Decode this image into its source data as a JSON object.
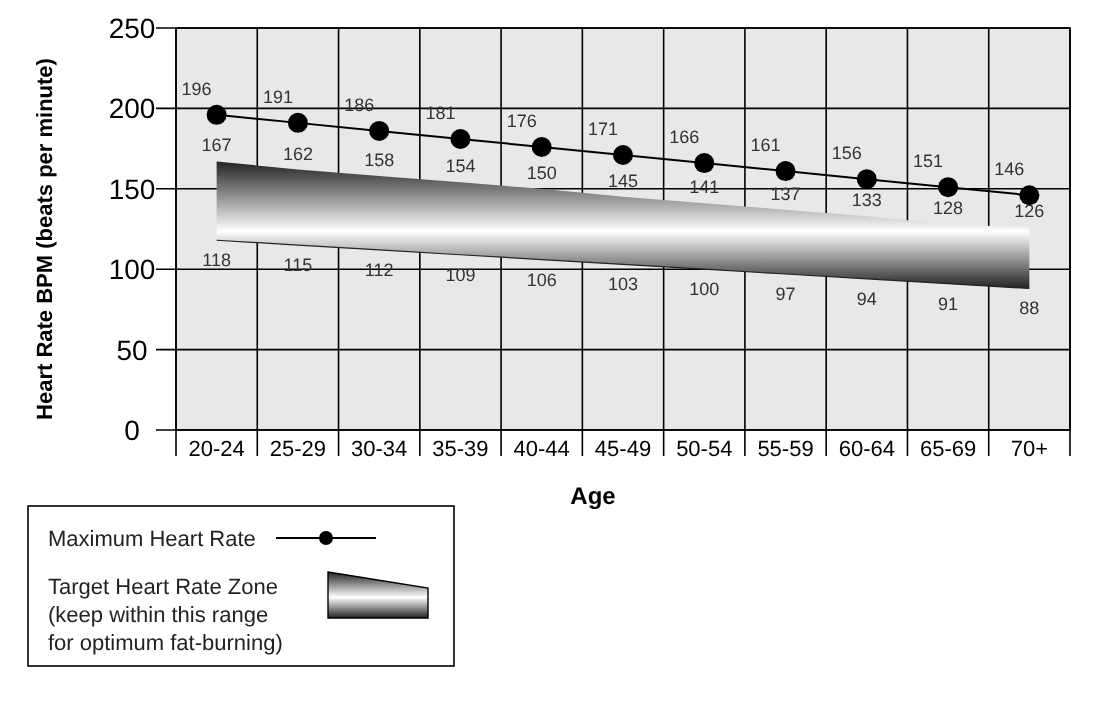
{
  "chart_data": {
    "type": "line",
    "xlabel": "Age",
    "ylabel": "Heart Rate BPM (beats per minute)",
    "categories": [
      "20-24",
      "25-29",
      "30-34",
      "35-39",
      "40-44",
      "45-49",
      "50-54",
      "55-59",
      "60-64",
      "65-69",
      "70+"
    ],
    "ylim": [
      0,
      250
    ],
    "yticks": [
      0,
      50,
      100,
      150,
      200,
      250
    ],
    "grid": true,
    "legend": "bottom left",
    "data_labels": true,
    "series": [
      {
        "name": "Maximum Heart Rate",
        "color": "#000000",
        "marker": "circle",
        "values": [
          196,
          191,
          186,
          181,
          176,
          171,
          166,
          161,
          156,
          151,
          146
        ]
      },
      {
        "name": "Target Heart Rate Zone (keep within this range for optimum fat-burning)",
        "type": "area",
        "color": "#222222",
        "values": [
          167,
          162,
          158,
          154,
          150,
          145,
          141,
          137,
          133,
          128,
          126
        ]
      },
      {
        "color": "#222222",
        "marker": "none",
        "values": [
          118,
          115,
          112,
          109,
          106,
          103,
          100,
          97,
          94,
          91,
          88
        ]
      }
    ]
  }
}
